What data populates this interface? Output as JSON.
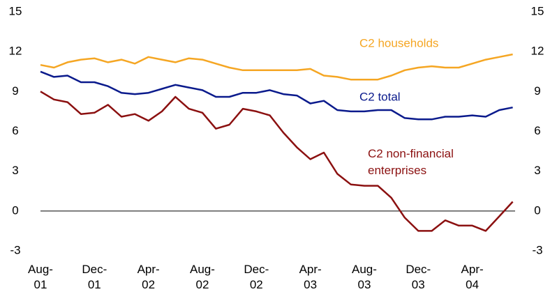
{
  "chart_data": {
    "type": "line",
    "categories": [
      "Aug-01",
      null,
      null,
      null,
      "Dec-01",
      null,
      null,
      null,
      "Apr-02",
      null,
      null,
      null,
      "Aug-02",
      null,
      null,
      null,
      "Dec-02",
      null,
      null,
      null,
      "Apr-03",
      null,
      null,
      null,
      "Aug-03",
      null,
      null,
      null,
      "Dec-03",
      null,
      null,
      null,
      "Apr-04",
      null,
      null,
      null
    ],
    "series": [
      {
        "name": "C2 households",
        "color": "#f5a623",
        "values": [
          11.0,
          10.8,
          11.2,
          11.4,
          11.5,
          11.2,
          11.4,
          11.1,
          11.6,
          11.4,
          11.2,
          11.5,
          11.4,
          11.1,
          10.8,
          10.6,
          10.6,
          10.6,
          10.6,
          10.6,
          10.7,
          10.2,
          10.1,
          9.9,
          9.9,
          9.9,
          10.2,
          10.6,
          10.8,
          10.9,
          10.8,
          10.8,
          11.1,
          11.4,
          11.6,
          11.8
        ]
      },
      {
        "name": "C2 total",
        "color": "#0a1a8c",
        "values": [
          10.5,
          10.1,
          10.2,
          9.7,
          9.7,
          9.4,
          8.9,
          8.8,
          8.9,
          9.2,
          9.5,
          9.3,
          9.1,
          8.6,
          8.6,
          8.9,
          8.9,
          9.1,
          8.8,
          8.7,
          8.1,
          8.3,
          7.6,
          7.5,
          7.5,
          7.6,
          7.6,
          7.0,
          6.9,
          6.9,
          7.1,
          7.1,
          7.2,
          7.1,
          7.6,
          7.8
        ]
      },
      {
        "name": "C2 non-financial enterprises",
        "color": "#8b1010",
        "values": [
          9.0,
          8.4,
          8.2,
          7.3,
          7.4,
          8.0,
          7.1,
          7.3,
          6.8,
          7.5,
          8.6,
          7.7,
          7.4,
          6.2,
          6.5,
          7.7,
          7.5,
          7.2,
          5.9,
          4.8,
          3.9,
          4.4,
          2.8,
          2.0,
          1.9,
          1.9,
          1.0,
          -0.5,
          -1.5,
          -1.5,
          -0.7,
          -1.1,
          -1.1,
          -1.5,
          -0.4,
          0.7
        ]
      }
    ],
    "ylim": [
      -3,
      15
    ],
    "yticks": [
      -3,
      0,
      3,
      6,
      9,
      12,
      15
    ],
    "y2lim": [
      -3,
      15
    ],
    "y2ticks": [
      -3,
      0,
      3,
      6,
      9,
      12,
      15
    ]
  }
}
